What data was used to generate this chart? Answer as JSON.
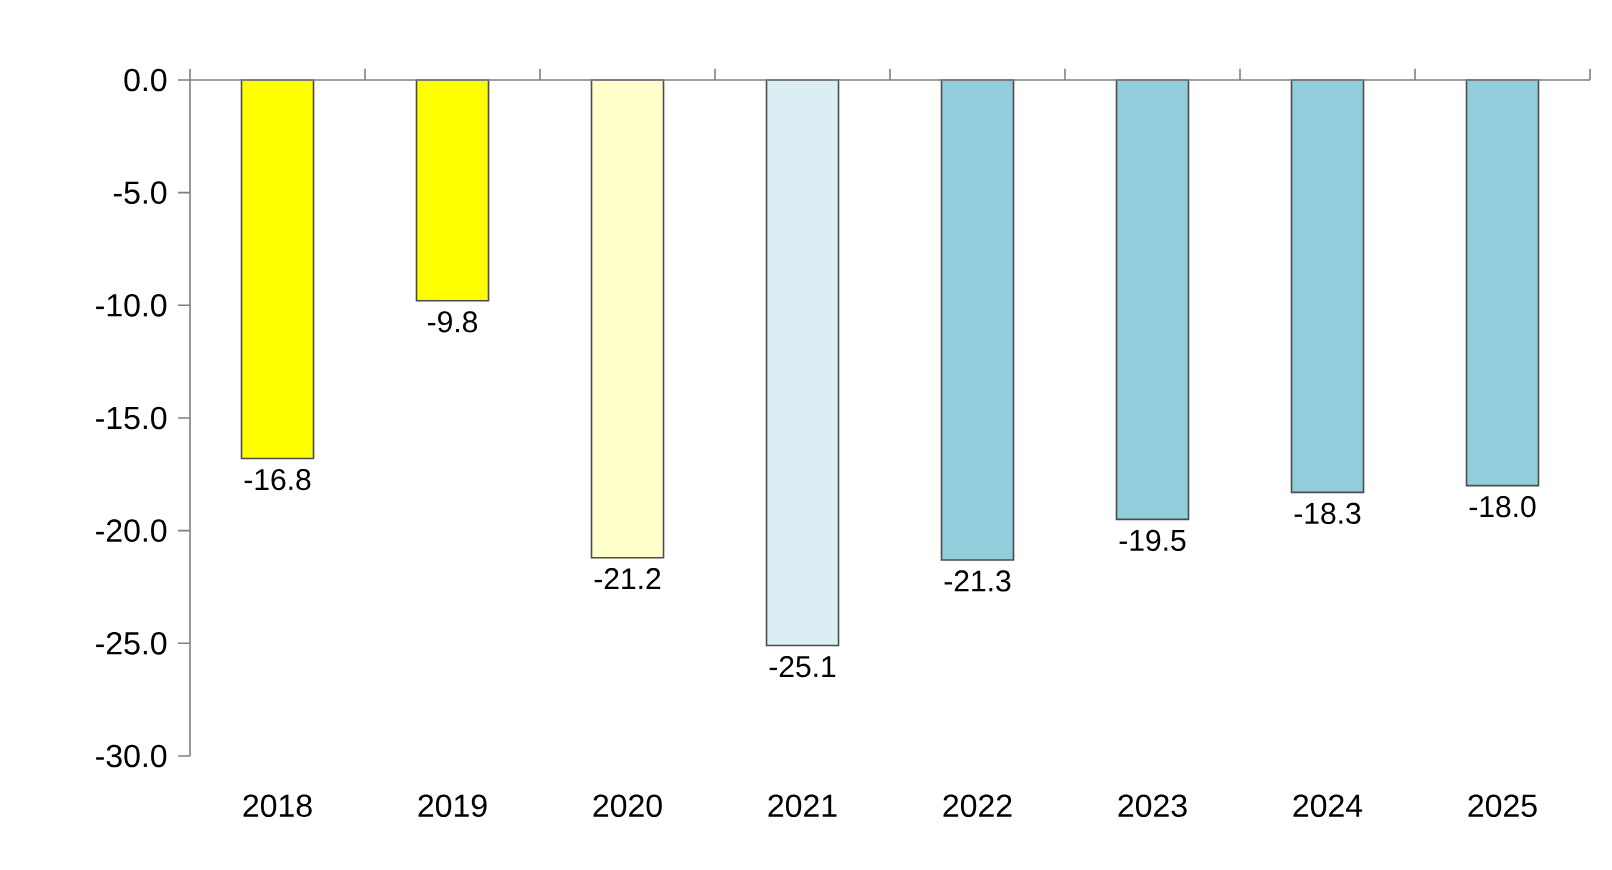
{
  "chart_data": {
    "type": "bar",
    "categories": [
      "2018",
      "2019",
      "2020",
      "2021",
      "2022",
      "2023",
      "2024",
      "2025"
    ],
    "values": [
      -16.8,
      -9.8,
      -21.2,
      -25.1,
      -21.3,
      -19.5,
      -18.3,
      -18.0
    ],
    "colors": [
      "#ffff00",
      "#ffff00",
      "#ffffcc",
      "#daeef3",
      "#92cddc",
      "#92cddc",
      "#92cddc",
      "#92cddc"
    ],
    "ylim": [
      -30.0,
      0.0
    ],
    "yticks": [
      {
        "value": 0,
        "label": "0.0"
      },
      {
        "value": -5,
        "label": "-5.0"
      },
      {
        "value": -10,
        "label": "-10.0"
      },
      {
        "value": -15,
        "label": "-15.0"
      },
      {
        "value": -20,
        "label": "-20.0"
      },
      {
        "value": -25,
        "label": "-25.0"
      },
      {
        "value": -30,
        "label": "-30.0"
      }
    ],
    "value_labels": [
      "-16.8",
      "-9.8",
      "-21.2",
      "-25.1",
      "-21.3",
      "-19.5",
      "-18.3",
      "-18.0"
    ],
    "grid": false
  }
}
